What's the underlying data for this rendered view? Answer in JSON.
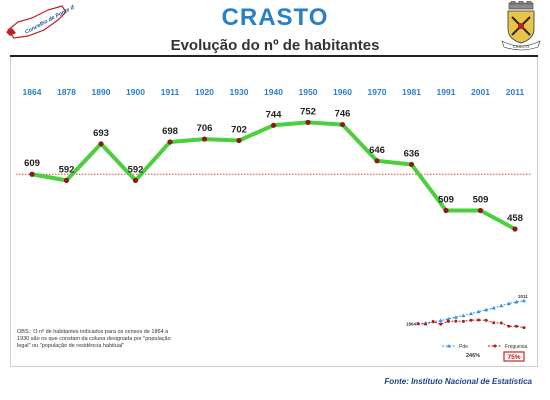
{
  "header": {
    "title": "CRASTO",
    "subtitle": "Evolução do nº de habitantes",
    "logo_text": "Concelho de Ponte da Barca",
    "crest_label": "CRASTO"
  },
  "chart_data": [
    {
      "type": "line",
      "title": "Evolução do nº de habitantes",
      "xlabel": "",
      "ylabel": "",
      "x": [
        "1864",
        "1878",
        "1890",
        "1900",
        "1911",
        "1920",
        "1930",
        "1940",
        "1950",
        "1960",
        "1970",
        "1981",
        "1991",
        "2001",
        "2011"
      ],
      "series": [
        {
          "values": [
            609,
            592,
            693,
            592,
            698,
            706,
            702,
            744,
            752,
            746,
            646,
            636,
            509,
            509,
            458
          ]
        }
      ],
      "reference_line": 609,
      "ylim": [
        400,
        800
      ],
      "grid": false,
      "colors": {
        "line": "#4ccf3c",
        "marker": "#8b1a1a",
        "reference": "#e04040",
        "years": "#2a7fc9"
      }
    },
    {
      "type": "line",
      "x_start_label": "1864",
      "x_end_label": "2011",
      "series": [
        {
          "name": "Pde",
          "values": [
            100,
            104,
            113,
            120,
            130,
            141,
            152,
            164,
            176,
            188,
            200,
            214,
            228,
            238,
            246
          ],
          "color": "#3a8fd9"
        },
        {
          "name": "Freguesia",
          "values": [
            100,
            97,
            114,
            97,
            115,
            116,
            115,
            122,
            123,
            122,
            106,
            104,
            84,
            84,
            75
          ],
          "color": "#b01c1c"
        }
      ],
      "end_values": {
        "Pde": "246%",
        "Freguesia": "75%"
      },
      "legend": "bottom"
    }
  ],
  "note": "OBS.: O nº de habitantes indicados para os censos de 1864 a 1930 são os que constam da coluna designada por \"população legal\" ou \"população de residência habitual\"",
  "source": "Fonte: Instituto Nacional de Estatística"
}
